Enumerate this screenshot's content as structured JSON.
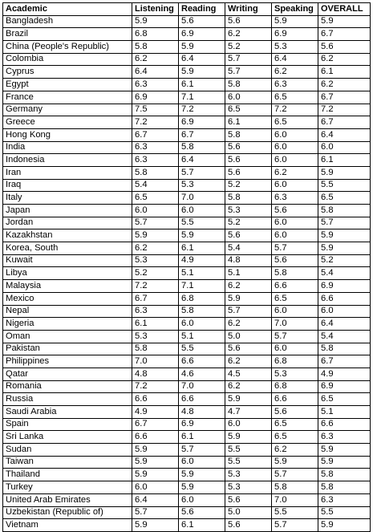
{
  "table": {
    "headers": [
      "Academic",
      "Listening",
      "Reading",
      "Writing",
      "Speaking",
      "OVERALL"
    ],
    "rows": [
      [
        "Bangladesh",
        "5.9",
        "5.6",
        "5.6",
        "5.9",
        "5.9"
      ],
      [
        "Brazil",
        "6.8",
        "6.9",
        "6.2",
        "6.9",
        "6.7"
      ],
      [
        "China (People's Republic)",
        "5.8",
        "5.9",
        "5.2",
        "5.3",
        "5.6"
      ],
      [
        "Colombia",
        "6.2",
        "6.4",
        "5.7",
        "6.4",
        "6.2"
      ],
      [
        "Cyprus",
        "6.4",
        "5.9",
        "5.7",
        "6.2",
        "6.1"
      ],
      [
        "Egypt",
        "6.3",
        "6.1",
        "5.8",
        "6.3",
        "6.2"
      ],
      [
        "France",
        "6.9",
        "7.1",
        "6.0",
        "6.5",
        "6.7"
      ],
      [
        "Germany",
        "7.5",
        "7.2",
        "6.5",
        "7.2",
        "7.2"
      ],
      [
        "Greece",
        "7.2",
        "6.9",
        "6.1",
        "6.5",
        "6.7"
      ],
      [
        "Hong Kong",
        "6.7",
        "6.7",
        "5.8",
        "6.0",
        "6.4"
      ],
      [
        "India",
        "6.3",
        "5.8",
        "5.6",
        "6.0",
        "6.0"
      ],
      [
        "Indonesia",
        "6.3",
        "6.4",
        "5.6",
        "6.0",
        "6.1"
      ],
      [
        "Iran",
        "5.8",
        "5.7",
        "5.6",
        "6.2",
        "5.9"
      ],
      [
        "Iraq",
        "5.4",
        "5.3",
        "5.2",
        "6.0",
        "5.5"
      ],
      [
        "Italy",
        "6.5",
        "7.0",
        "5.8",
        "6.3",
        "6.5"
      ],
      [
        "Japan",
        "6.0",
        "6.0",
        "5.3",
        "5.6",
        "5.8"
      ],
      [
        "Jordan",
        "5.7",
        "5.5",
        "5.2",
        "6.0",
        "5.7"
      ],
      [
        "Kazakhstan",
        "5.9",
        "5.9",
        "5.6",
        "6.0",
        "5.9"
      ],
      [
        "Korea, South",
        "6.2",
        "6.1",
        "5.4",
        "5.7",
        "5.9"
      ],
      [
        "Kuwait",
        "5.3",
        "4.9",
        "4.8",
        "5.6",
        "5.2"
      ],
      [
        "Libya",
        "5.2",
        "5.1",
        "5.1",
        "5.8",
        "5.4"
      ],
      [
        "Malaysia",
        "7.2",
        "7.1",
        "6.2",
        "6.6",
        "6.9"
      ],
      [
        "Mexico",
        "6.7",
        "6.8",
        "5.9",
        "6.5",
        "6.6"
      ],
      [
        "Nepal",
        "6.3",
        "5.8",
        "5.7",
        "6.0",
        "6.0"
      ],
      [
        "Nigeria",
        "6.1",
        "6.0",
        "6.2",
        "7.0",
        "6.4"
      ],
      [
        "Oman",
        "5.3",
        "5.1",
        "5.0",
        "5.7",
        "5.4"
      ],
      [
        "Pakistan",
        "5.8",
        "5.5",
        "5.6",
        "6.0",
        "5.8"
      ],
      [
        "Philippines",
        "7.0",
        "6.6",
        "6.2",
        "6.8",
        "6.7"
      ],
      [
        "Qatar",
        "4.8",
        "4.6",
        "4.5",
        "5.3",
        "4.9"
      ],
      [
        "Romania",
        "7.2",
        "7.0",
        "6.2",
        "6.8",
        "6.9"
      ],
      [
        "Russia",
        "6.6",
        "6.6",
        "5.9",
        "6.6",
        "6.5"
      ],
      [
        "Saudi Arabia",
        "4.9",
        "4.8",
        "4.7",
        "5.6",
        "5.1"
      ],
      [
        "Spain",
        "6.7",
        "6.9",
        "6.0",
        "6.5",
        "6.6"
      ],
      [
        "Sri Lanka",
        "6.6",
        "6.1",
        "5.9",
        "6.5",
        "6.3"
      ],
      [
        "Sudan",
        "5.9",
        "5.7",
        "5.5",
        "6.2",
        "5.9"
      ],
      [
        "Taiwan",
        "5.9",
        "6.0",
        "5.5",
        "5.9",
        "5.9"
      ],
      [
        "Thailand",
        "5.9",
        "5.9",
        "5.3",
        "5.7",
        "5.8"
      ],
      [
        "Turkey",
        "6.0",
        "5.9",
        "5.3",
        "5.8",
        "5.8"
      ],
      [
        "United Arab Emirates",
        "6.4",
        "6.0",
        "5.6",
        "7.0",
        "6.3"
      ],
      [
        "Uzbekistan (Republic of)",
        "5.7",
        "5.6",
        "5.0",
        "5.5",
        "5.5"
      ],
      [
        "Vietnam",
        "5.9",
        "6.1",
        "5.6",
        "5.7",
        "5.9"
      ]
    ]
  }
}
